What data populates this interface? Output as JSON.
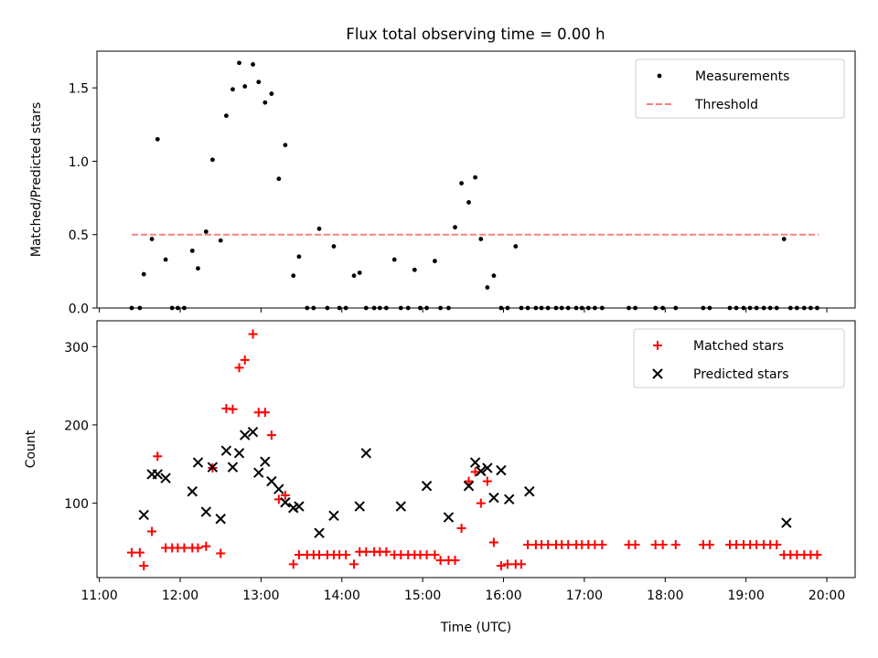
{
  "title": "Flux total observing time = 0.00 h",
  "chart_data": [
    {
      "type": "scatter",
      "ylabel": "Matched/Predicted stars",
      "xlim": [
        10.97,
        20.35
      ],
      "ylim": [
        0,
        1.75
      ],
      "yticks": [
        0.0,
        0.5,
        1.0,
        1.5
      ],
      "ytick_labels": [
        "0.0",
        "0.5",
        "1.0",
        "1.5"
      ],
      "legend_position": "top-right",
      "series": [
        {
          "name": "Measurements",
          "color": "#000000",
          "marker": "dot",
          "x": [
            11.4,
            11.5,
            11.55,
            11.65,
            11.72,
            11.82,
            11.9,
            11.97,
            12.05,
            12.15,
            12.22,
            12.32,
            12.4,
            12.5,
            12.57,
            12.65,
            12.73,
            12.8,
            12.9,
            12.97,
            13.05,
            13.13,
            13.22,
            13.3,
            13.4,
            13.47,
            13.57,
            13.65,
            13.72,
            13.82,
            13.9,
            13.97,
            14.05,
            14.15,
            14.22,
            14.3,
            14.4,
            14.47,
            14.55,
            14.65,
            14.73,
            14.82,
            14.9,
            14.97,
            15.05,
            15.15,
            15.22,
            15.32,
            15.4,
            15.48,
            15.57,
            15.65,
            15.72,
            15.8,
            15.88,
            15.97,
            16.05,
            16.15,
            16.22,
            16.3,
            16.4,
            16.47,
            16.55,
            16.65,
            16.72,
            16.8,
            16.9,
            16.97,
            17.05,
            17.13,
            17.22,
            17.55,
            17.63,
            17.88,
            17.97,
            18.13,
            18.47,
            18.55,
            18.8,
            18.88,
            18.97,
            19.05,
            19.13,
            19.22,
            19.3,
            19.38,
            19.47,
            19.55,
            19.63,
            19.72,
            19.8,
            19.88
          ],
          "y": [
            0,
            0,
            0.23,
            0.47,
            1.15,
            0.33,
            0,
            0,
            0,
            0.39,
            0.27,
            0.52,
            1.01,
            0.46,
            1.31,
            1.49,
            1.67,
            1.51,
            1.66,
            1.54,
            1.4,
            1.46,
            0.88,
            1.11,
            0.22,
            0.35,
            0,
            0,
            0.54,
            0,
            0.42,
            0,
            0,
            0.22,
            0.24,
            0,
            0,
            0,
            0,
            0.33,
            0,
            0,
            0.26,
            0,
            0,
            0.32,
            0,
            0,
            0.55,
            0.85,
            0.72,
            0.89,
            0.47,
            0.14,
            0.22,
            0,
            0,
            0.42,
            0,
            0,
            0,
            0,
            0,
            0,
            0,
            0,
            0,
            0,
            0,
            0,
            0,
            0,
            0,
            0,
            0,
            0,
            0,
            0,
            0,
            0,
            0,
            0,
            0,
            0,
            0,
            0,
            0.47,
            0,
            0,
            0,
            0,
            0
          ]
        },
        {
          "name": "Threshold",
          "color": "#ff7f7f",
          "style": "dashed",
          "x": [
            11.4,
            19.9
          ],
          "y": [
            0.5,
            0.5
          ]
        }
      ]
    },
    {
      "type": "scatter",
      "xlabel": "Time (UTC)",
      "ylabel": "Count",
      "xlim": [
        10.97,
        20.35
      ],
      "ylim": [
        5,
        333
      ],
      "yticks": [
        100,
        200,
        300
      ],
      "ytick_labels": [
        "100",
        "200",
        "300"
      ],
      "xticks": [
        11,
        12,
        13,
        14,
        15,
        16,
        17,
        18,
        19,
        20
      ],
      "xtick_labels": [
        "11:00",
        "12:00",
        "13:00",
        "14:00",
        "15:00",
        "16:00",
        "17:00",
        "18:00",
        "19:00",
        "20:00"
      ],
      "legend_position": "top-right",
      "series": [
        {
          "name": "Matched stars",
          "color": "#ff0000",
          "marker": "plus",
          "x": [
            11.4,
            11.5,
            11.55,
            11.65,
            11.72,
            11.82,
            11.9,
            11.97,
            12.05,
            12.15,
            12.22,
            12.32,
            12.4,
            12.5,
            12.57,
            12.65,
            12.73,
            12.8,
            12.9,
            12.97,
            13.05,
            13.13,
            13.22,
            13.3,
            13.4,
            13.47,
            13.57,
            13.65,
            13.72,
            13.82,
            13.9,
            13.97,
            14.05,
            14.15,
            14.22,
            14.3,
            14.4,
            14.47,
            14.55,
            14.65,
            14.73,
            14.82,
            14.9,
            14.97,
            15.05,
            15.15,
            15.22,
            15.32,
            15.4,
            15.48,
            15.57,
            15.65,
            15.72,
            15.8,
            15.88,
            15.97,
            16.05,
            16.15,
            16.22,
            16.3,
            16.4,
            16.47,
            16.55,
            16.65,
            16.72,
            16.8,
            16.9,
            16.97,
            17.05,
            17.13,
            17.22,
            17.55,
            17.63,
            17.88,
            17.97,
            18.13,
            18.47,
            18.55,
            18.8,
            18.88,
            18.97,
            19.05,
            19.13,
            19.22,
            19.3,
            19.38,
            19.47,
            19.55,
            19.63,
            19.72,
            19.8,
            19.88
          ],
          "y": [
            37,
            37,
            20,
            64,
            160,
            43,
            43,
            43,
            43,
            43,
            43,
            45,
            145,
            36,
            221,
            220,
            273,
            283,
            316,
            216,
            216,
            187,
            105,
            110,
            22,
            34,
            34,
            34,
            34,
            34,
            34,
            34,
            34,
            22,
            38,
            38,
            38,
            38,
            38,
            34,
            34,
            34,
            34,
            34,
            34,
            34,
            27,
            27,
            27,
            68,
            128,
            140,
            100,
            128,
            50,
            20,
            22,
            22,
            22,
            47,
            47,
            47,
            47,
            47,
            47,
            47,
            47,
            47,
            47,
            47,
            47,
            47,
            47,
            47,
            47,
            47,
            47,
            47,
            47,
            47,
            47,
            47,
            47,
            47,
            47,
            47,
            34,
            34,
            34,
            34,
            34,
            34
          ]
        },
        {
          "name": "Predicted stars",
          "color": "#000000",
          "marker": "x",
          "x": [
            11.55,
            11.65,
            11.72,
            11.82,
            12.15,
            12.22,
            12.32,
            12.4,
            12.5,
            12.57,
            12.65,
            12.73,
            12.8,
            12.9,
            12.97,
            13.05,
            13.13,
            13.22,
            13.3,
            13.4,
            13.47,
            13.72,
            13.9,
            14.22,
            14.3,
            14.73,
            15.05,
            15.32,
            15.57,
            15.65,
            15.72,
            15.8,
            15.88,
            15.97,
            16.07,
            16.32,
            19.5
          ],
          "y": [
            85,
            137,
            137,
            132,
            115,
            152,
            89,
            146,
            80,
            167,
            146,
            164,
            187,
            191,
            139,
            153,
            128,
            118,
            101,
            94,
            96,
            62,
            84,
            96,
            164,
            96,
            122,
            82,
            122,
            152,
            141,
            145,
            107,
            142,
            105,
            115,
            75
          ]
        }
      ]
    }
  ]
}
